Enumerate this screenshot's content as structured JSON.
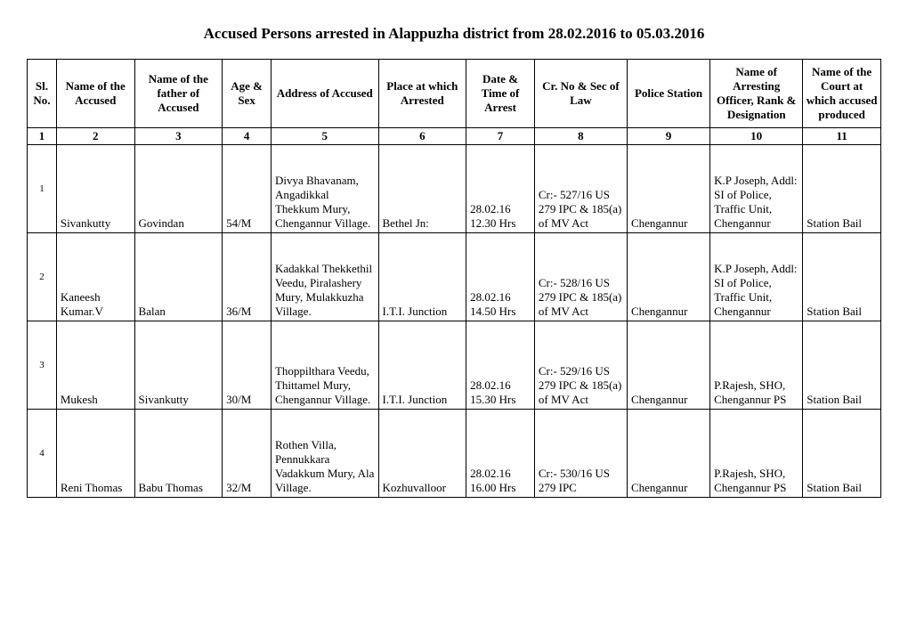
{
  "title": "Accused Persons arrested in   Alappuzha  district from  28.02.2016 to 05.03.2016",
  "headers": {
    "c1": "Sl. No.",
    "c2": "Name of the Accused",
    "c3": "Name of the father of Accused",
    "c4": "Age & Sex",
    "c5": "Address of Accused",
    "c6": "Place at which Arrested",
    "c7": "Date & Time of Arrest",
    "c8": "Cr. No & Sec of Law",
    "c9": "Police Station",
    "c10": "Name of Arresting Officer, Rank & Designation",
    "c11": "Name of the Court at which accused produced"
  },
  "numrow": {
    "c1": "1",
    "c2": "2",
    "c3": "3",
    "c4": "4",
    "c5": "5",
    "c6": "6",
    "c7": "7",
    "c8": "8",
    "c9": "9",
    "c10": "10",
    "c11": "11"
  },
  "rows": [
    {
      "c1": "1",
      "c2": "Sivankutty",
      "c3": "Govindan",
      "c4": "54/M",
      "c5": "Divya Bhavanam, Angadikkal Thekkum Mury, Chengannur Village.",
      "c6": "Bethel Jn:",
      "c7": "28.02.16 12.30 Hrs",
      "c8": "Cr:- 527/16 US 279 IPC & 185(a) of MV Act",
      "c9": "Chengannur",
      "c10": "K.P Joseph, Addl: SI of Police, Traffic Unit, Chengannur",
      "c11": "Station Bail"
    },
    {
      "c1": "2",
      "c2": "Kaneesh Kumar.V",
      "c3": "Balan",
      "c4": "36/M",
      "c5": "Kadakkal Thekkethil Veedu, Piralashery Mury, Mulakkuzha Village.",
      "c6": "I.T.I. Junction",
      "c7": "28.02.16 14.50 Hrs",
      "c8": "Cr:- 528/16 US 279 IPC & 185(a) of MV Act",
      "c9": "Chengannur",
      "c10": "K.P Joseph, Addl: SI of Police, Traffic Unit, Chengannur",
      "c11": "Station Bail"
    },
    {
      "c1": "3",
      "c2": "Mukesh",
      "c3": "Sivankutty",
      "c4": "30/M",
      "c5": "Thoppilthara Veedu, Thittamel Mury, Chengannur Village.",
      "c6": "I.T.I. Junction",
      "c7": "28.02.16 15.30 Hrs",
      "c8": "Cr:- 529/16 US 279 IPC & 185(a) of MV Act",
      "c9": "Chengannur",
      "c10": "P.Rajesh, SHO, Chengannur PS",
      "c11": "Station Bail"
    },
    {
      "c1": "4",
      "c2": "Reni Thomas",
      "c3": "Babu Thomas",
      "c4": "32/M",
      "c5": "Rothen Villa, Pennukkara Vadakkum Mury, Ala Village.",
      "c6": "Kozhuvalloor",
      "c7": "28.02.16 16.00 Hrs",
      "c8": "Cr:- 530/16 US 279 IPC",
      "c9": "Chengannur",
      "c10": "P.Rajesh, SHO, Chengannur PS",
      "c11": "Station Bail"
    }
  ]
}
